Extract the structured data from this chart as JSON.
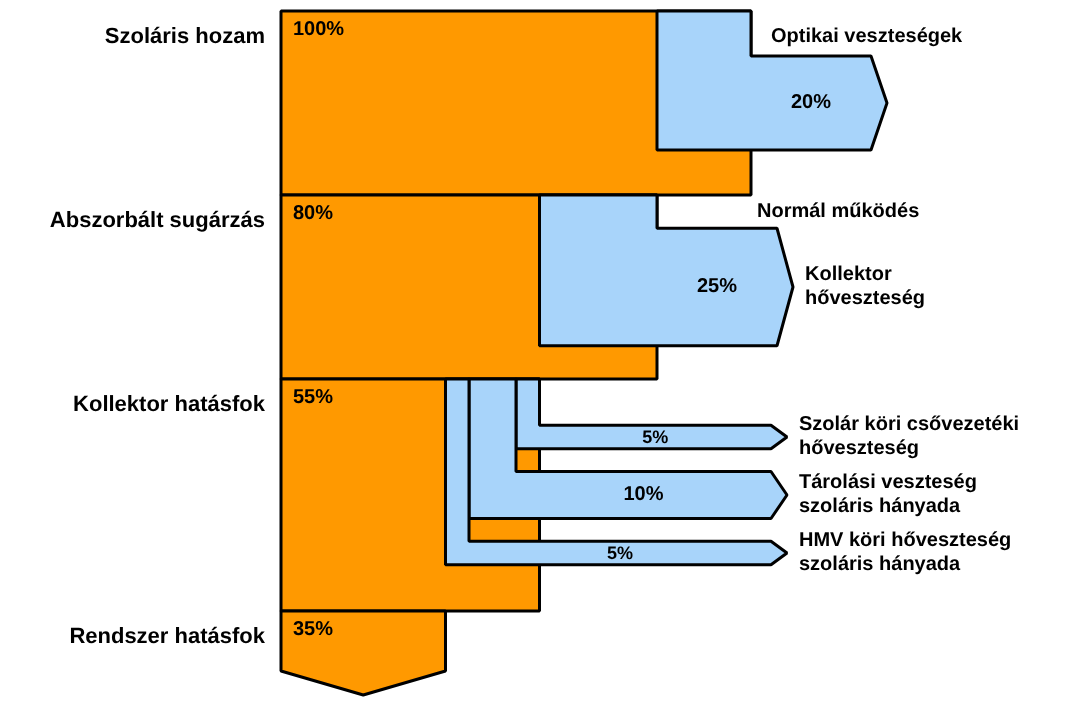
{
  "chart_data": {
    "type": "other",
    "categories": [
      "Szoláris hozam",
      "Optikai veszteségek",
      "Abszorbált sugárzás",
      "Kollektor\nhőveszteség",
      "Kollektor hatásfok",
      "Szolár köri csővezetéki\nhőveszteség",
      "Tárolási veszteség\nszoláris hányada",
      "HMV köri hőveszteség\nszoláris hányada",
      "Rendszer hatásfok"
    ],
    "values": [
      100,
      20,
      80,
      25,
      55,
      5,
      10,
      5,
      35
    ],
    "value_labels": [
      "100%",
      "20%",
      "80%",
      "25%",
      "55%",
      "5%",
      "10%",
      "5%",
      "35%"
    ],
    "colors": [
      "#ff9900",
      "#a8d4fa",
      "#ff9900",
      "#a8d4fa",
      "#ff9900",
      "#a8d4fa",
      "#a8d4fa",
      "#a8d4fa",
      "#ff9900"
    ],
    "annotations": [
      "Normál működés"
    ]
  }
}
